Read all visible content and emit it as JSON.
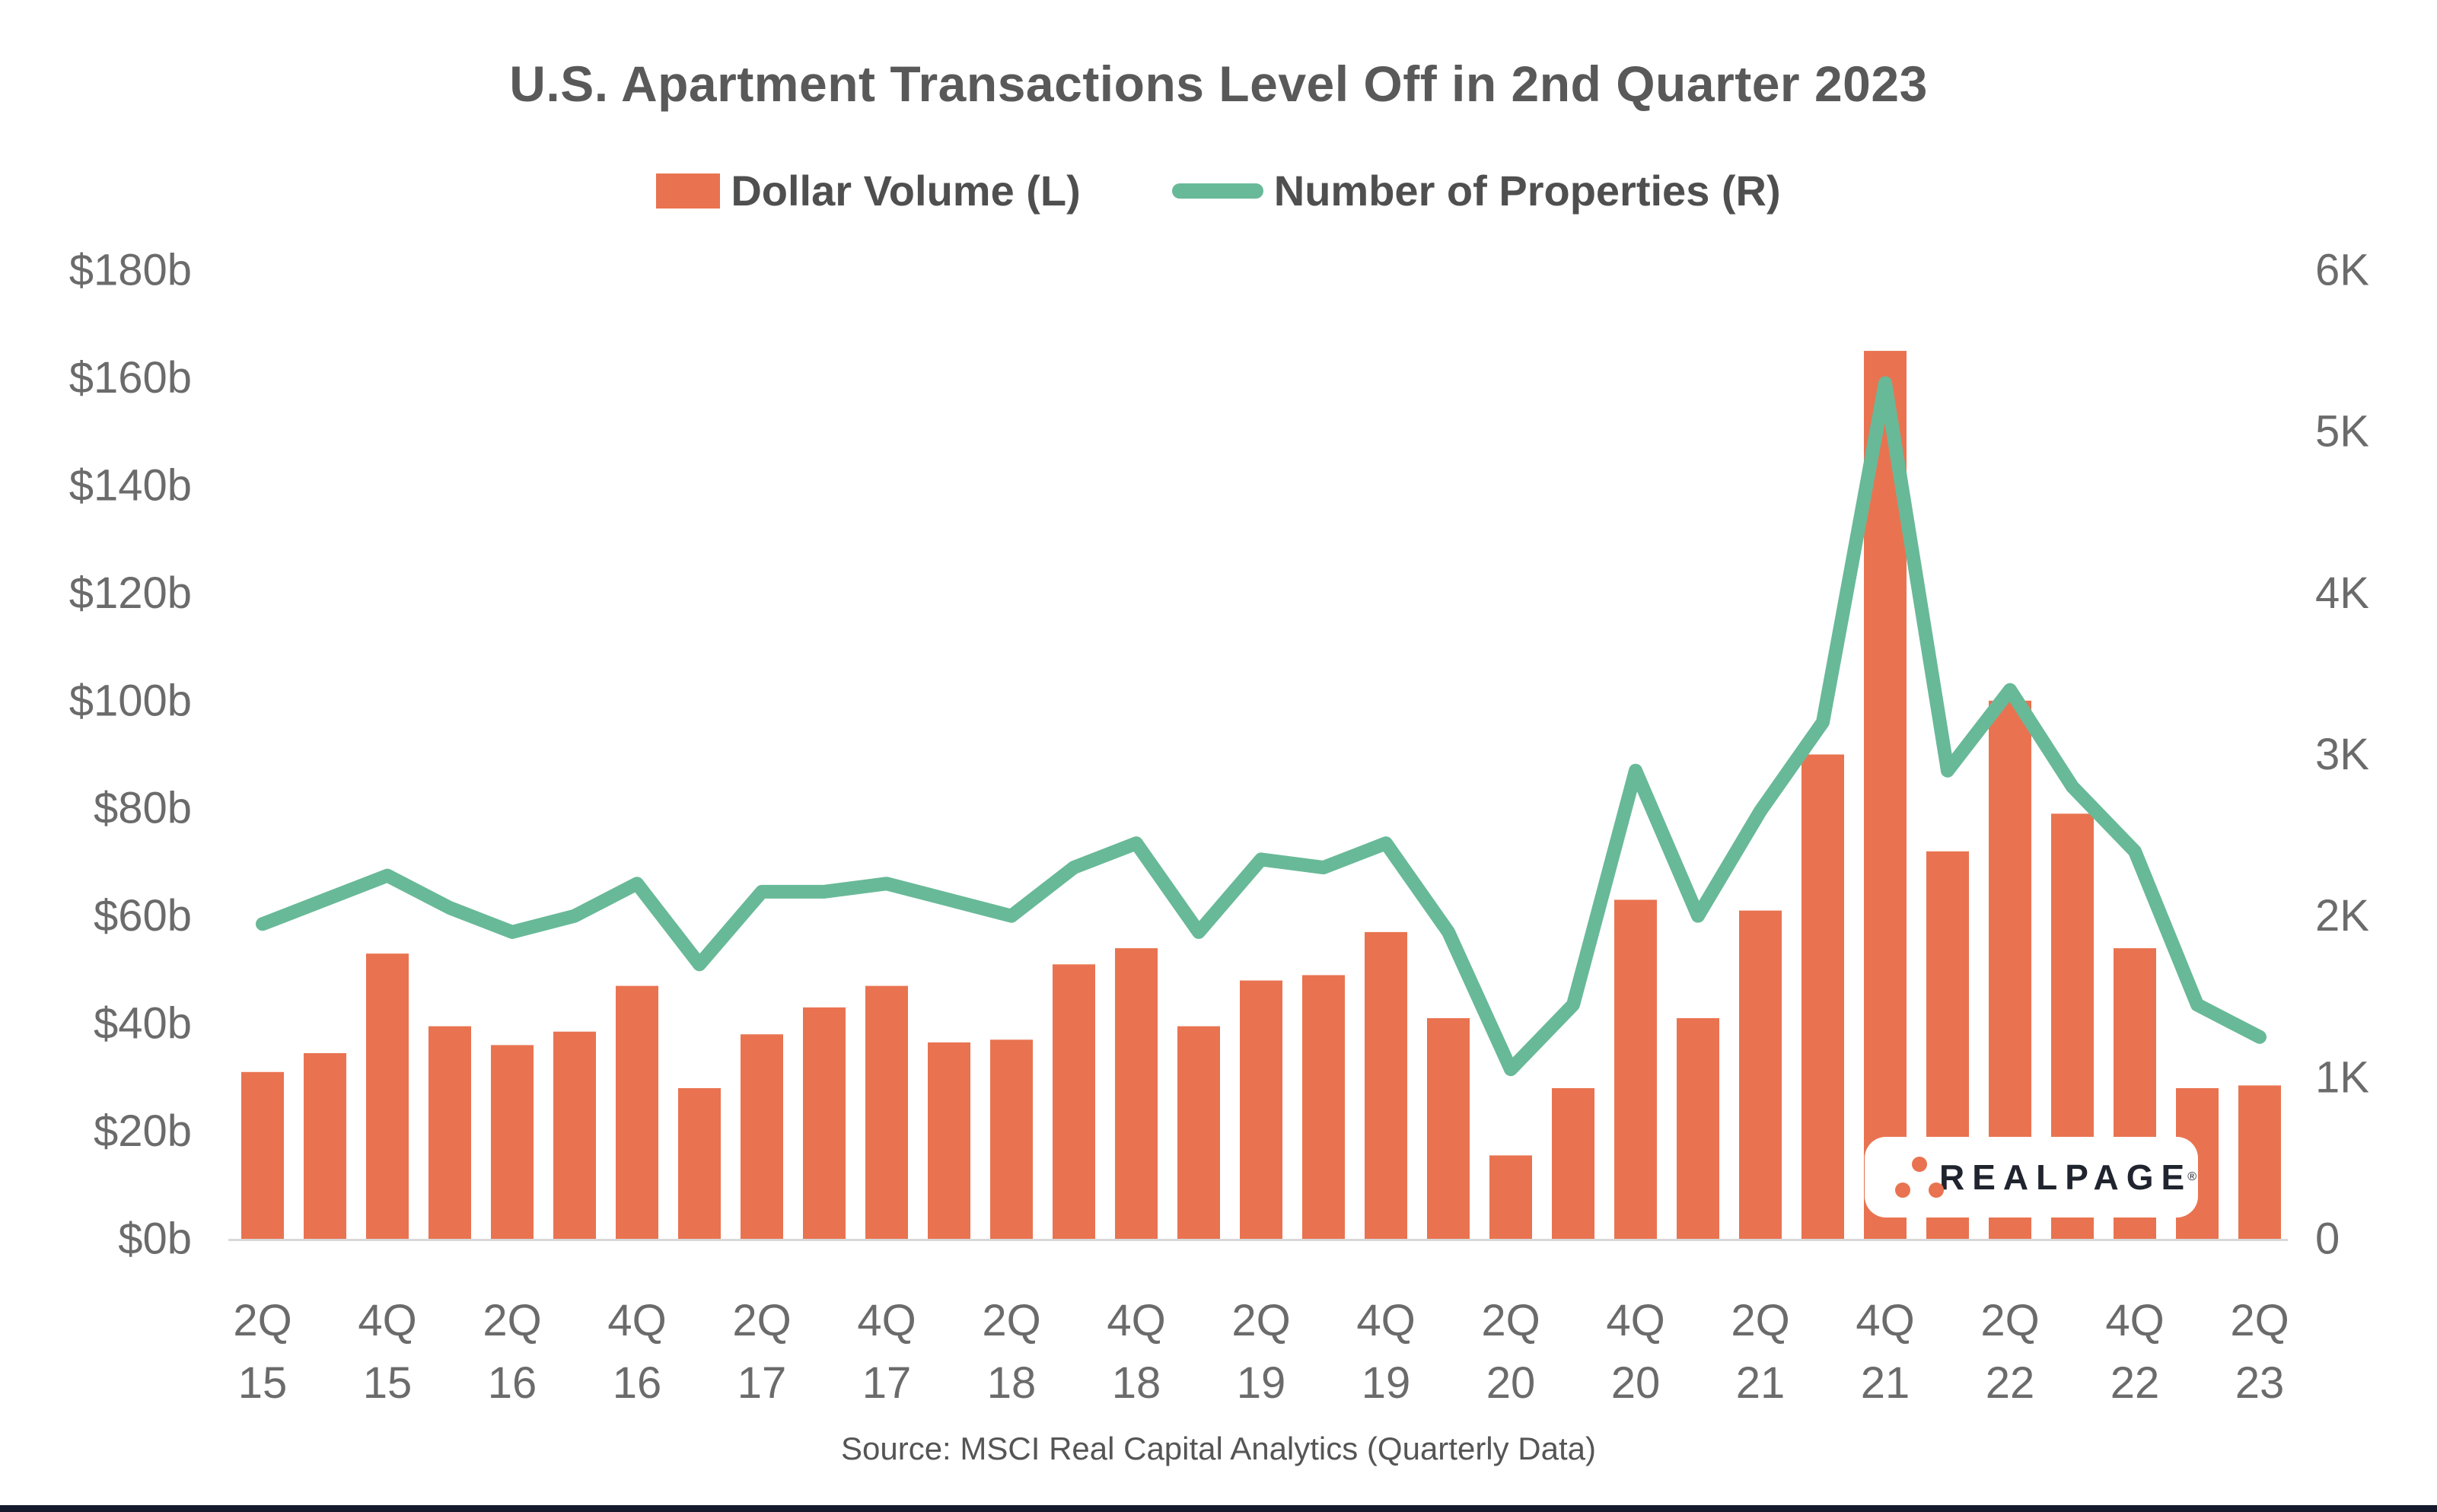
{
  "title": "U.S. Apartment Transactions Level Off in 2nd Quarter 2023",
  "legend": {
    "bar": {
      "label": "Dollar Volume (L)",
      "color": "#E97350"
    },
    "line": {
      "label": "Number of Properties (R)",
      "color": "#68B998"
    }
  },
  "source": "Source: MSCI Real Capital Analytics (Quarterly Data)",
  "logo": {
    "text": "REALPAGE",
    "reg": "®",
    "dot_color": "#E97350",
    "text_color": "#20242e"
  },
  "colors": {
    "bar": "#E97350",
    "line": "#68B998",
    "axis_label": "#6B6B6B",
    "baseline": "#D8D8D8",
    "bottom_strip": "#151B2D"
  },
  "chart_data": {
    "type": "bar+line combo",
    "title": "U.S. Apartment Transactions Level Off in 2nd Quarter 2023",
    "categories": [
      "2Q15",
      "3Q15",
      "4Q15",
      "1Q16",
      "2Q16",
      "3Q16",
      "4Q16",
      "1Q17",
      "2Q17",
      "3Q17",
      "4Q17",
      "1Q18",
      "2Q18",
      "3Q18",
      "4Q18",
      "1Q19",
      "2Q19",
      "3Q19",
      "4Q19",
      "1Q20",
      "2Q20",
      "3Q20",
      "4Q20",
      "1Q21",
      "2Q21",
      "3Q21",
      "4Q21",
      "1Q22",
      "2Q22",
      "3Q22",
      "4Q22",
      "1Q23",
      "2Q23"
    ],
    "series": [
      {
        "name": "Dollar Volume (L)",
        "type": "bar",
        "axis": "left",
        "unit": "$ billions",
        "values": [
          31,
          34.5,
          53,
          39.5,
          36,
          38.5,
          47,
          28,
          38,
          43,
          47,
          36.5,
          37,
          51,
          54,
          39.5,
          48,
          49,
          57,
          41,
          15.5,
          28,
          63,
          41,
          61,
          90,
          165,
          72,
          100,
          79,
          54,
          28,
          28.5
        ]
      },
      {
        "name": "Number of Properties (R)",
        "type": "line",
        "axis": "right",
        "unit": "thousands of properties",
        "values": [
          1.95,
          2.1,
          2.25,
          2.05,
          1.9,
          2.0,
          2.2,
          1.7,
          2.15,
          2.15,
          2.2,
          2.1,
          2.0,
          2.3,
          2.45,
          1.9,
          2.35,
          2.3,
          2.45,
          1.9,
          1.05,
          1.45,
          2.9,
          2.0,
          2.65,
          3.2,
          5.3,
          2.9,
          3.4,
          2.8,
          2.4,
          1.45,
          1.25
        ]
      }
    ],
    "left_axis": {
      "label_format": "$Nb",
      "min": 0,
      "max": 180,
      "step": 20,
      "tick_labels": [
        "$0b",
        "$20b",
        "$40b",
        "$60b",
        "$80b",
        "$100b",
        "$120b",
        "$140b",
        "$160b",
        "$180b"
      ]
    },
    "right_axis": {
      "label_format": "NK",
      "min": 0,
      "max": 6,
      "step": 1,
      "tick_labels": [
        "0",
        "1K",
        "2K",
        "3K",
        "4K",
        "5K",
        "6K"
      ]
    },
    "x_tick_every": 2,
    "x_tick_labels": [
      [
        "2Q",
        "15"
      ],
      [
        "4Q",
        "15"
      ],
      [
        "2Q",
        "16"
      ],
      [
        "4Q",
        "16"
      ],
      [
        "2Q",
        "17"
      ],
      [
        "4Q",
        "17"
      ],
      [
        "2Q",
        "18"
      ],
      [
        "4Q",
        "18"
      ],
      [
        "2Q",
        "19"
      ],
      [
        "4Q",
        "19"
      ],
      [
        "2Q",
        "20"
      ],
      [
        "4Q",
        "20"
      ],
      [
        "2Q",
        "21"
      ],
      [
        "4Q",
        "21"
      ],
      [
        "2Q",
        "22"
      ],
      [
        "4Q",
        "22"
      ],
      [
        "2Q",
        "23"
      ]
    ],
    "grid": false,
    "legend_position": "top"
  }
}
